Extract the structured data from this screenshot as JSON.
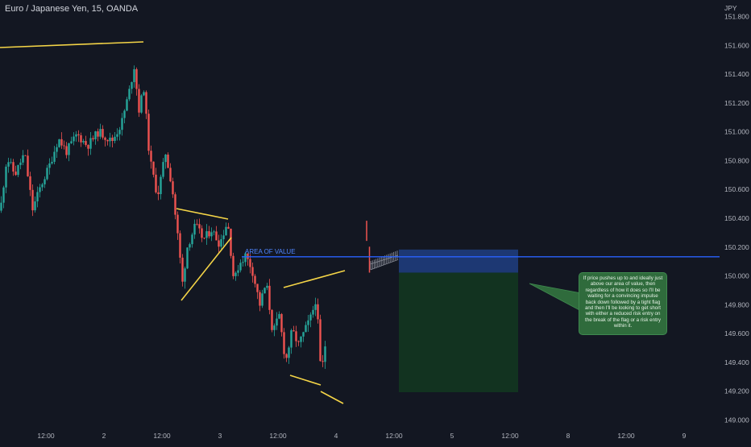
{
  "header": {
    "symbol": "Euro / Japanese Yen, 15, OANDA",
    "currency": "JPY"
  },
  "chart_data": {
    "type": "candlestick",
    "yaxis": {
      "ticks": [
        "151.800",
        "151.600",
        "151.400",
        "151.200",
        "151.000",
        "150.800",
        "150.600",
        "150.400",
        "150.200",
        "150.000",
        "149.800",
        "149.600",
        "149.400",
        "149.200",
        "149.000"
      ],
      "range": [
        148.98,
        151.85
      ]
    },
    "xaxis": {
      "ticks": [
        "12:00",
        "2",
        "12:00",
        "3",
        "12:00",
        "4",
        "12:00",
        "5",
        "12:00",
        "8",
        "12:00",
        "9"
      ]
    },
    "annotations": {
      "area_of_value_label": "AREA OF VALUE",
      "area_of_value_price": 150.13,
      "note_text": "If price pushes up to and ideally just above our area of value, then regardless of how it does so I'll be waiting for a convincing impulse back down followed by a tight flag and then I'll be looking to get short with either a reduced risk entry on the break of the flag or a risk entry within it."
    },
    "position": {
      "direction": "short",
      "stop_top": 150.18,
      "entry": 150.02,
      "target": 149.19
    },
    "colors": {
      "background": "#131722",
      "up": "#26a69a",
      "down": "#ef5350",
      "trendlines": "#f5d547",
      "area_of_value": "#2962ff",
      "risk_zone": "#1e3a78",
      "reward_zone": "#123320",
      "note_bg": "#2f6b3c"
    }
  }
}
